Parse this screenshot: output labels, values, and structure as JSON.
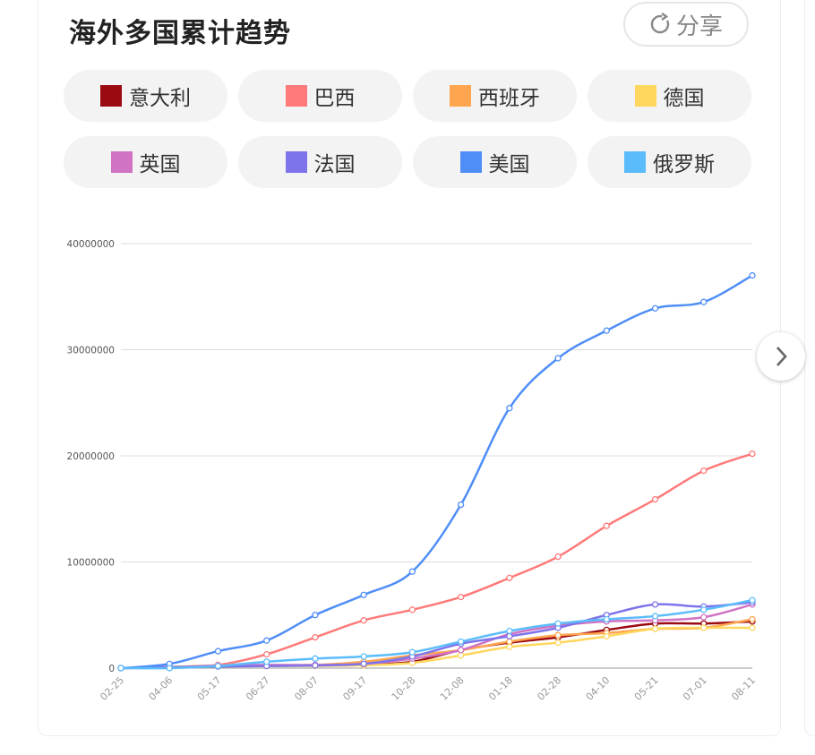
{
  "header": {
    "title": "海外多国累计趋势",
    "share_label": "分享"
  },
  "chart_data": {
    "type": "line",
    "title": "海外多国累计趋势",
    "categories": [
      "02-25",
      "04-06",
      "05-17",
      "06-27",
      "08-07",
      "09-17",
      "10-28",
      "12-08",
      "01-18",
      "02-28",
      "04-10",
      "05-21",
      "07-01",
      "08-11"
    ],
    "ylim": [
      0,
      40000000
    ],
    "yticks": [
      "0",
      "10000000",
      "20000000",
      "30000000",
      "40000000"
    ],
    "grid": true,
    "legend_position": "top",
    "series": [
      {
        "name": "意大利",
        "color": "#9b0a12",
        "values": [
          0,
          100000,
          200000,
          250000,
          250000,
          300000,
          600000,
          1700000,
          2400000,
          2900000,
          3600000,
          4200000,
          4200000,
          4400000
        ]
      },
      {
        "name": "巴西",
        "color": "#ff7a7a",
        "values": [
          0,
          100000,
          300000,
          1300000,
          2900000,
          4500000,
          5500000,
          6700000,
          8500000,
          10500000,
          13400000,
          15900000,
          18600000,
          20200000
        ]
      },
      {
        "name": "西班牙",
        "color": "#ffa54f",
        "values": [
          0,
          100000,
          250000,
          250000,
          300000,
          600000,
          1200000,
          1700000,
          2500000,
          3100000,
          3300000,
          3700000,
          3800000,
          4600000
        ]
      },
      {
        "name": "德国",
        "color": "#ffd75e",
        "values": [
          0,
          100000,
          170000,
          190000,
          210000,
          270000,
          500000,
          1200000,
          2000000,
          2400000,
          3000000,
          3700000,
          3800000,
          3800000
        ]
      },
      {
        "name": "英国",
        "color": "#d073c4",
        "values": [
          0,
          50000,
          250000,
          300000,
          300000,
          400000,
          900000,
          1700000,
          3200000,
          4000000,
          4400000,
          4500000,
          4800000,
          6000000
        ]
      },
      {
        "name": "法国",
        "color": "#7d74ec",
        "values": [
          0,
          100000,
          150000,
          200000,
          250000,
          400000,
          1100000,
          2300000,
          3000000,
          3800000,
          5000000,
          6000000,
          5800000,
          6200000
        ]
      },
      {
        "name": "美国",
        "color": "#4f8ef7",
        "values": [
          0,
          400000,
          1600000,
          2600000,
          5000000,
          6900000,
          9100000,
          15400000,
          24500000,
          29200000,
          31800000,
          33900000,
          34500000,
          37000000
        ]
      },
      {
        "name": "俄罗斯",
        "color": "#5bbcfb",
        "values": [
          0,
          0,
          200000,
          600000,
          900000,
          1100000,
          1500000,
          2500000,
          3500000,
          4200000,
          4600000,
          4900000,
          5500000,
          6400000
        ]
      }
    ]
  }
}
